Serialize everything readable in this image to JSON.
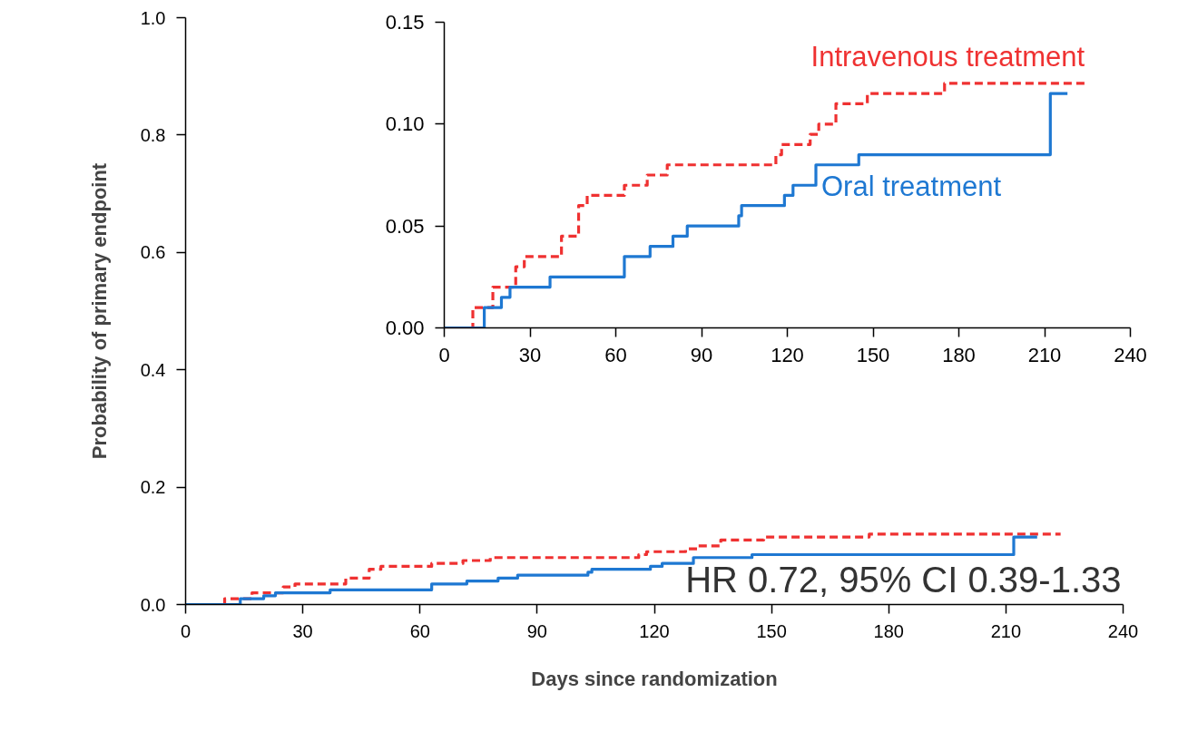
{
  "chart_data": [
    {
      "type": "step",
      "xlabel": "Days since randomization",
      "ylabel": "Probability of primary endpoint",
      "xlim": [
        0,
        240
      ],
      "ylim": [
        0,
        1
      ],
      "xticks": [
        0,
        30,
        60,
        90,
        120,
        150,
        180,
        210,
        240
      ],
      "yticks": [
        {
          "value": 0,
          "label": "0.0"
        },
        0.2,
        0.4,
        0.6,
        0.8,
        {
          "value": 1,
          "label": "1.0"
        }
      ],
      "grid": false,
      "legend": false,
      "annotations": [
        "HR 0.72, 95% CI 0.39-1.33"
      ],
      "series": [
        {
          "color": "#ef3131",
          "line_style": "dashed",
          "x": [
            0,
            10,
            17,
            25,
            28,
            41,
            47,
            50,
            63,
            71,
            78,
            116,
            118,
            128,
            131,
            137,
            148,
            175,
            224
          ],
          "values": [
            0,
            0.01,
            0.02,
            0.03,
            0.035,
            0.045,
            0.06,
            0.065,
            0.07,
            0.075,
            0.08,
            0.085,
            0.09,
            0.095,
            0.1,
            0.11,
            0.115,
            0.12,
            0.12
          ]
        },
        {
          "color": "#1e78d2",
          "line_style": "solid",
          "x": [
            0,
            14,
            20,
            23,
            37,
            63,
            72,
            80,
            85,
            103,
            104,
            119,
            122,
            130,
            145,
            212,
            218
          ],
          "values": [
            0,
            0.01,
            0.015,
            0.02,
            0.025,
            0.035,
            0.04,
            0.045,
            0.05,
            0.055,
            0.06,
            0.065,
            0.07,
            0.08,
            0.085,
            0.115,
            0.115
          ]
        }
      ]
    },
    {
      "type": "step",
      "xlim": [
        0,
        240
      ],
      "ylim": [
        0,
        0.15
      ],
      "xticks": [
        0,
        30,
        60,
        90,
        120,
        150,
        180,
        210,
        240
      ],
      "yticks": [
        {
          "value": 0,
          "label": "0.00"
        },
        {
          "value": 0.05,
          "label": "0.05"
        },
        {
          "value": 0.1,
          "label": "0.10"
        },
        {
          "value": 0.15,
          "label": "0.15"
        }
      ],
      "grid": false,
      "legend": false,
      "series": [
        {
          "name": "Intravenous treatment",
          "color": "#ef3131",
          "line_style": "dashed",
          "x": [
            0,
            10,
            17,
            25,
            28,
            41,
            47,
            50,
            63,
            71,
            78,
            116,
            118,
            128,
            131,
            137,
            148,
            175,
            224
          ],
          "values": [
            0,
            0.01,
            0.02,
            0.03,
            0.035,
            0.045,
            0.06,
            0.065,
            0.07,
            0.075,
            0.08,
            0.085,
            0.09,
            0.095,
            0.1,
            0.11,
            0.115,
            0.12,
            0.12
          ]
        },
        {
          "name": "Oral treatment",
          "color": "#1e78d2",
          "line_style": "solid",
          "x": [
            0,
            14,
            20,
            23,
            37,
            63,
            72,
            80,
            85,
            103,
            104,
            119,
            122,
            130,
            145,
            212,
            218
          ],
          "values": [
            0,
            0.01,
            0.015,
            0.02,
            0.025,
            0.035,
            0.04,
            0.045,
            0.05,
            0.055,
            0.06,
            0.065,
            0.07,
            0.08,
            0.085,
            0.115,
            0.115
          ]
        }
      ]
    }
  ]
}
